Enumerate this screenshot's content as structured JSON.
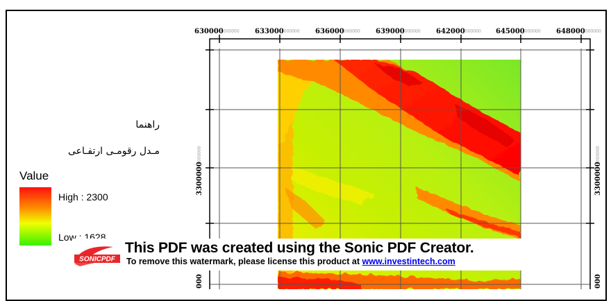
{
  "legend": {
    "title": "راهنما",
    "layer_name": "مـدل رقومـی ارتفـاعی",
    "field": "Value",
    "high_label": "High : 2300",
    "low_label": "Low : 1628",
    "colors": {
      "high": "#ff1010",
      "mid": "#ff8a00",
      "midlow": "#f0ff00",
      "low": "#38f000"
    }
  },
  "grid": {
    "x_ticks": [
      {
        "main": "630000",
        "sub": "000000"
      },
      {
        "main": "633000",
        "sub": "000000"
      },
      {
        "main": "636000",
        "sub": "000000"
      },
      {
        "main": "639000",
        "sub": "000000"
      },
      {
        "main": "642000",
        "sub": "000000"
      },
      {
        "main": "645000",
        "sub": "000000"
      },
      {
        "main": "648000",
        "sub": "000000"
      }
    ],
    "y_left_label": "3300000",
    "y_left_sub": "000000",
    "y_right_label": "3300000",
    "y_right_sub": "000000",
    "y_bottom_left_label": "000",
    "y_bottom_right_label": "000"
  },
  "watermark": {
    "logo_text": "SONICPDF",
    "line1_prefix": "This PDF was created using the ",
    "line1_brand": "Sonic PDF Creator",
    "line1_suffix": ".",
    "line2_text": "To remove this watermark, please license this product at ",
    "line2_link": "www.investintech.com"
  }
}
